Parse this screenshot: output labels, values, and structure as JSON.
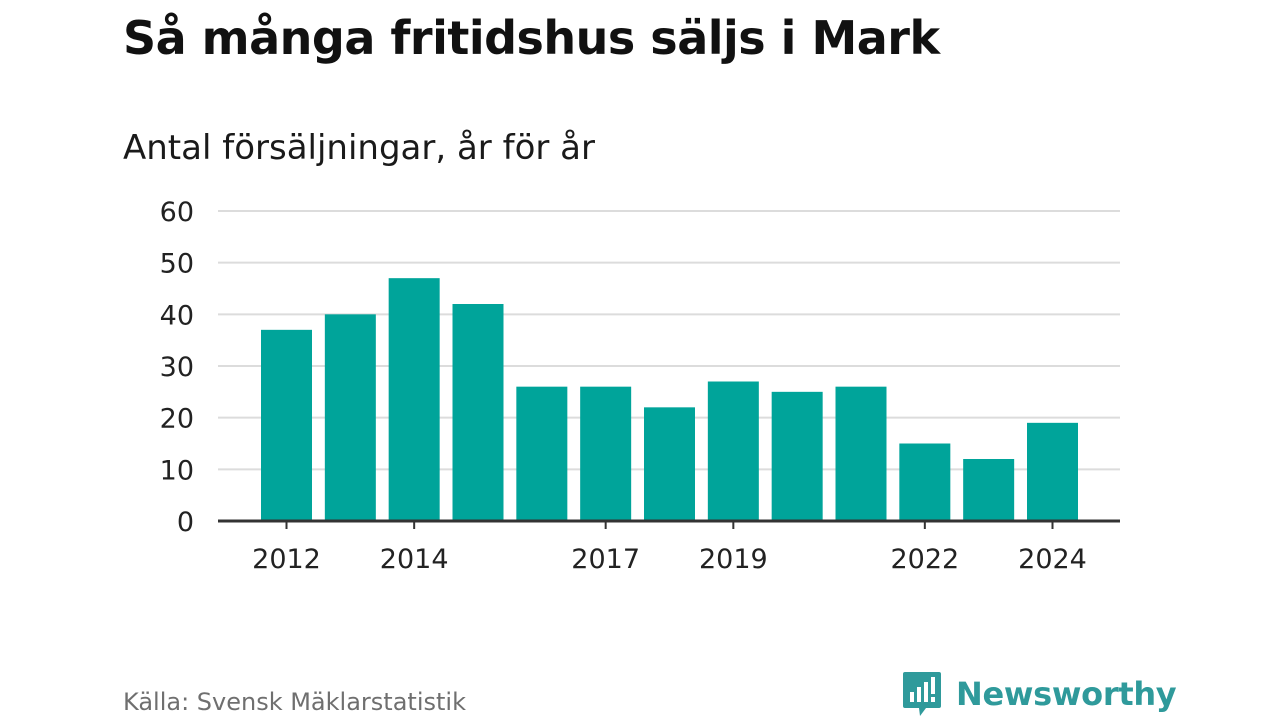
{
  "title": "Så många fritidshus säljs i Mark",
  "subtitle": "Antal försäljningar, år för år",
  "source": "Källa: Svensk Mäklarstatistik",
  "brand": {
    "name": "Newsworthy",
    "icon": "newsworthy-logo-icon",
    "color": "#2f9a9b"
  },
  "chart_data": {
    "type": "bar",
    "categories": [
      "2012",
      "2013",
      "2014",
      "2015",
      "2016",
      "2017",
      "2018",
      "2019",
      "2020",
      "2021",
      "2022",
      "2023",
      "2024"
    ],
    "values": [
      37,
      40,
      47,
      42,
      26,
      26,
      22,
      27,
      25,
      26,
      15,
      12,
      19
    ],
    "x_tick_labels": [
      "2012",
      "2014",
      "2017",
      "2019",
      "2022",
      "2024"
    ],
    "y_ticks": [
      "0",
      "10",
      "20",
      "30",
      "40",
      "50",
      "60"
    ],
    "ylim": [
      0,
      60
    ],
    "grid": true,
    "bar_color": "#00a49a",
    "title": "Så många fritidshus säljs i Mark",
    "subtitle": "Antal försäljningar, år för år",
    "xlabel": "",
    "ylabel": ""
  }
}
